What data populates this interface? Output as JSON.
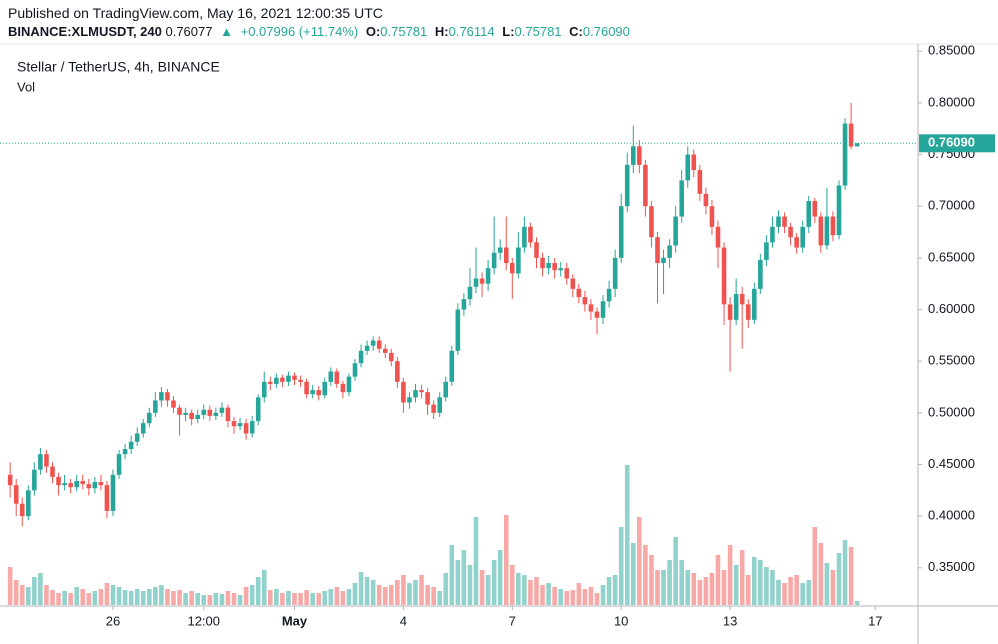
{
  "header": {
    "published": "Published on TradingView.com, May 16, 2021 12:00:35 UTC",
    "symbol": "BINANCE:XLMUSDT, 240",
    "last": "0.76077",
    "arrow": "▲",
    "change": "+0.07996 (+11.74%)",
    "o_label": "O:",
    "o": "0.75781",
    "h_label": "H:",
    "h": "0.76114",
    "l_label": "L:",
    "l": "0.75781",
    "c_label": "C:",
    "c": "0.76090"
  },
  "chart_data": {
    "type": "candlestick",
    "title": "Stellar / TetherUS, 4h, BINANCE",
    "volume_label": "Vol",
    "up_color": "#26a69a",
    "down_color": "#ef5350",
    "ylim": [
      0.314,
      0.857
    ],
    "yticks": [
      {
        "value": 0.35,
        "label": "0.35000"
      },
      {
        "value": 0.4,
        "label": "0.40000"
      },
      {
        "value": 0.45,
        "label": "0.45000"
      },
      {
        "value": 0.5,
        "label": "0.50000"
      },
      {
        "value": 0.55,
        "label": "0.55000"
      },
      {
        "value": 0.6,
        "label": "0.60000"
      },
      {
        "value": 0.65,
        "label": "0.65000"
      },
      {
        "value": 0.7,
        "label": "0.70000"
      },
      {
        "value": 0.75,
        "label": "0.75000"
      },
      {
        "value": 0.8,
        "label": "0.80000"
      },
      {
        "value": 0.85,
        "label": "0.85000"
      }
    ],
    "last_price": {
      "value": 0.7609,
      "label": "0.76090"
    },
    "categories": [
      null,
      null,
      null,
      null,
      null,
      null,
      null,
      null,
      null,
      null,
      null,
      null,
      null,
      null,
      null,
      null,
      null,
      "26",
      null,
      null,
      null,
      null,
      null,
      null,
      null,
      null,
      null,
      null,
      null,
      null,
      null,
      null,
      "12:00",
      null,
      null,
      null,
      null,
      null,
      null,
      null,
      null,
      null,
      null,
      null,
      null,
      null,
      null,
      "May",
      null,
      null,
      null,
      null,
      null,
      null,
      null,
      null,
      null,
      null,
      null,
      null,
      null,
      null,
      null,
      null,
      null,
      "4",
      null,
      null,
      null,
      null,
      null,
      null,
      null,
      null,
      null,
      null,
      null,
      null,
      null,
      null,
      null,
      null,
      null,
      "7",
      null,
      null,
      null,
      null,
      null,
      null,
      null,
      null,
      null,
      null,
      null,
      null,
      null,
      null,
      null,
      null,
      null,
      "10",
      null,
      null,
      null,
      null,
      null,
      null,
      null,
      null,
      null,
      null,
      null,
      null,
      null,
      null,
      null,
      null,
      null,
      "13",
      null,
      null,
      null,
      null,
      null,
      null,
      null,
      null,
      null,
      null,
      null,
      null,
      null,
      null,
      null,
      null,
      null,
      null,
      null,
      null,
      null,
      null,
      null,
      "17",
      null,
      null,
      null,
      null,
      null,
      null
    ],
    "open": [
      0.44,
      0.43,
      0.412,
      0.4,
      0.425,
      0.445,
      0.46,
      0.448,
      0.438,
      0.43,
      0.432,
      0.428,
      0.434,
      0.431,
      0.427,
      0.433,
      0.43,
      0.405,
      0.44,
      0.46,
      0.465,
      0.472,
      0.48,
      0.49,
      0.5,
      0.512,
      0.52,
      0.512,
      0.505,
      0.498,
      0.5,
      0.494,
      0.498,
      0.503,
      0.497,
      0.5,
      0.505,
      0.492,
      0.487,
      0.49,
      0.48,
      0.492,
      0.515,
      0.53,
      0.528,
      0.534,
      0.53,
      0.536,
      0.532,
      0.53,
      0.518,
      0.522,
      0.517,
      0.53,
      0.54,
      0.528,
      0.52,
      0.535,
      0.548,
      0.56,
      0.565,
      0.57,
      0.562,
      0.558,
      0.55,
      0.53,
      0.51,
      0.515,
      0.522,
      0.52,
      0.508,
      0.5,
      0.515,
      0.53,
      0.56,
      0.6,
      0.61,
      0.622,
      0.63,
      0.625,
      0.64,
      0.655,
      0.66,
      0.645,
      0.635,
      0.66,
      0.68,
      0.665,
      0.65,
      0.64,
      0.645,
      0.638,
      0.64,
      0.63,
      0.62,
      0.612,
      0.605,
      0.598,
      0.592,
      0.608,
      0.62,
      0.65,
      0.7,
      0.74,
      0.758,
      0.74,
      0.7,
      0.67,
      0.645,
      0.65,
      0.662,
      0.69,
      0.725,
      0.75,
      0.735,
      0.712,
      0.7,
      0.68,
      0.66,
      0.605,
      0.59,
      0.615,
      0.605,
      0.59,
      0.62,
      0.648,
      0.665,
      0.68,
      0.69,
      0.68,
      0.67,
      0.66,
      0.68,
      0.705,
      0.69,
      0.662,
      0.69,
      0.672,
      0.72,
      0.78,
      0.75781,
      null,
      null,
      null,
      null,
      null,
      null,
      null,
      null,
      null
    ],
    "high": [
      0.452,
      0.436,
      0.418,
      0.43,
      0.452,
      0.466,
      0.464,
      0.452,
      0.442,
      0.44,
      0.436,
      0.44,
      0.44,
      0.436,
      0.438,
      0.44,
      0.434,
      0.445,
      0.464,
      0.47,
      0.478,
      0.486,
      0.494,
      0.505,
      0.52,
      0.525,
      0.523,
      0.516,
      0.508,
      0.505,
      0.503,
      0.503,
      0.508,
      0.507,
      0.505,
      0.51,
      0.508,
      0.496,
      0.495,
      0.494,
      0.497,
      0.518,
      0.54,
      0.535,
      0.538,
      0.537,
      0.54,
      0.539,
      0.536,
      0.533,
      0.527,
      0.526,
      0.534,
      0.544,
      0.543,
      0.531,
      0.538,
      0.552,
      0.566,
      0.57,
      0.574,
      0.574,
      0.566,
      0.562,
      0.554,
      0.534,
      0.52,
      0.528,
      0.527,
      0.524,
      0.512,
      0.52,
      0.535,
      0.565,
      0.606,
      0.616,
      0.64,
      0.66,
      0.636,
      0.648,
      0.69,
      0.668,
      0.69,
      0.65,
      0.675,
      0.69,
      0.684,
      0.67,
      0.655,
      0.652,
      0.65,
      0.646,
      0.645,
      0.634,
      0.625,
      0.618,
      0.61,
      0.602,
      0.614,
      0.628,
      0.658,
      0.712,
      0.752,
      0.778,
      0.764,
      0.745,
      0.705,
      0.675,
      0.658,
      0.668,
      0.7,
      0.735,
      0.758,
      0.755,
      0.74,
      0.718,
      0.706,
      0.686,
      0.665,
      0.612,
      0.63,
      0.622,
      0.61,
      0.626,
      0.654,
      0.672,
      0.69,
      0.696,
      0.694,
      0.684,
      0.674,
      0.686,
      0.71,
      0.708,
      0.694,
      0.718,
      0.695,
      0.725,
      0.785,
      0.8,
      0.76114,
      null,
      null,
      null,
      null,
      null,
      null,
      null,
      null,
      null
    ],
    "low": [
      0.418,
      0.4,
      0.39,
      0.396,
      0.42,
      0.44,
      0.442,
      0.432,
      0.42,
      0.425,
      0.422,
      0.424,
      0.426,
      0.42,
      0.422,
      0.425,
      0.398,
      0.4,
      0.436,
      0.455,
      0.46,
      0.468,
      0.476,
      0.486,
      0.496,
      0.506,
      0.506,
      0.5,
      0.478,
      0.492,
      0.488,
      0.49,
      0.494,
      0.492,
      0.493,
      0.496,
      0.486,
      0.48,
      0.483,
      0.474,
      0.476,
      0.488,
      0.51,
      0.522,
      0.524,
      0.525,
      0.526,
      0.527,
      0.525,
      0.514,
      0.514,
      0.512,
      0.514,
      0.526,
      0.524,
      0.514,
      0.516,
      0.531,
      0.544,
      0.556,
      0.56,
      0.558,
      0.553,
      0.545,
      0.524,
      0.5,
      0.504,
      0.51,
      0.514,
      0.498,
      0.494,
      0.496,
      0.511,
      0.526,
      0.556,
      0.594,
      0.604,
      0.616,
      0.612,
      0.618,
      0.634,
      0.648,
      0.638,
      0.61,
      0.63,
      0.655,
      0.66,
      0.64,
      0.632,
      0.634,
      0.63,
      0.632,
      0.624,
      0.612,
      0.606,
      0.598,
      0.59,
      0.576,
      0.586,
      0.602,
      0.612,
      0.645,
      0.694,
      0.732,
      0.732,
      0.69,
      0.66,
      0.606,
      0.615,
      0.64,
      0.655,
      0.684,
      0.718,
      0.728,
      0.705,
      0.692,
      0.672,
      0.64,
      0.585,
      0.54,
      0.585,
      0.562,
      0.582,
      0.586,
      0.615,
      0.642,
      0.66,
      0.674,
      0.674,
      0.662,
      0.654,
      0.655,
      0.674,
      0.684,
      0.655,
      0.658,
      0.666,
      0.668,
      0.716,
      0.755,
      0.75781,
      null,
      null,
      null,
      null,
      null,
      null,
      null,
      null,
      null
    ],
    "close": [
      0.43,
      0.412,
      0.4,
      0.425,
      0.445,
      0.46,
      0.448,
      0.438,
      0.43,
      0.432,
      0.428,
      0.434,
      0.431,
      0.427,
      0.433,
      0.43,
      0.405,
      0.44,
      0.46,
      0.465,
      0.472,
      0.48,
      0.49,
      0.5,
      0.512,
      0.52,
      0.512,
      0.505,
      0.498,
      0.5,
      0.494,
      0.498,
      0.503,
      0.497,
      0.5,
      0.505,
      0.492,
      0.487,
      0.49,
      0.48,
      0.492,
      0.515,
      0.53,
      0.528,
      0.534,
      0.53,
      0.536,
      0.532,
      0.53,
      0.518,
      0.522,
      0.517,
      0.53,
      0.54,
      0.528,
      0.52,
      0.535,
      0.548,
      0.56,
      0.565,
      0.57,
      0.562,
      0.558,
      0.55,
      0.53,
      0.51,
      0.515,
      0.522,
      0.52,
      0.508,
      0.5,
      0.515,
      0.53,
      0.56,
      0.6,
      0.61,
      0.622,
      0.63,
      0.625,
      0.64,
      0.655,
      0.66,
      0.645,
      0.635,
      0.66,
      0.68,
      0.665,
      0.65,
      0.64,
      0.645,
      0.638,
      0.64,
      0.63,
      0.62,
      0.612,
      0.605,
      0.598,
      0.592,
      0.608,
      0.62,
      0.65,
      0.7,
      0.74,
      0.758,
      0.74,
      0.7,
      0.67,
      0.645,
      0.65,
      0.662,
      0.69,
      0.725,
      0.75,
      0.735,
      0.712,
      0.7,
      0.68,
      0.66,
      0.605,
      0.59,
      0.615,
      0.605,
      0.59,
      0.62,
      0.648,
      0.665,
      0.68,
      0.69,
      0.68,
      0.67,
      0.66,
      0.68,
      0.705,
      0.69,
      0.662,
      0.69,
      0.672,
      0.72,
      0.78,
      0.7578,
      0.7609,
      null,
      null,
      null,
      null,
      null,
      null,
      null,
      null,
      null
    ],
    "volume": [
      38,
      25,
      20,
      18,
      28,
      32,
      20,
      15,
      12,
      14,
      12,
      18,
      16,
      12,
      14,
      16,
      22,
      20,
      18,
      15,
      14,
      16,
      14,
      16,
      18,
      20,
      16,
      14,
      15,
      12,
      14,
      12,
      10,
      10,
      12,
      11,
      14,
      12,
      10,
      18,
      20,
      28,
      35,
      15,
      16,
      12,
      14,
      12,
      12,
      15,
      12,
      12,
      14,
      16,
      18,
      14,
      16,
      22,
      33,
      28,
      25,
      20,
      18,
      20,
      25,
      30,
      22,
      25,
      30,
      20,
      18,
      14,
      32,
      60,
      45,
      55,
      40,
      88,
      35,
      30,
      45,
      55,
      90,
      40,
      32,
      30,
      25,
      28,
      20,
      22,
      18,
      16,
      14,
      15,
      22,
      16,
      18,
      12,
      20,
      28,
      30,
      78,
      140,
      62,
      88,
      60,
      50,
      35,
      35,
      45,
      68,
      45,
      35,
      32,
      25,
      28,
      32,
      50,
      35,
      60,
      40,
      55,
      30,
      48,
      45,
      38,
      35,
      25,
      22,
      28,
      30,
      22,
      25,
      78,
      62,
      42,
      35,
      52,
      65,
      58,
      4,
      null,
      null,
      null,
      null,
      null,
      null,
      null,
      null,
      null
    ]
  }
}
